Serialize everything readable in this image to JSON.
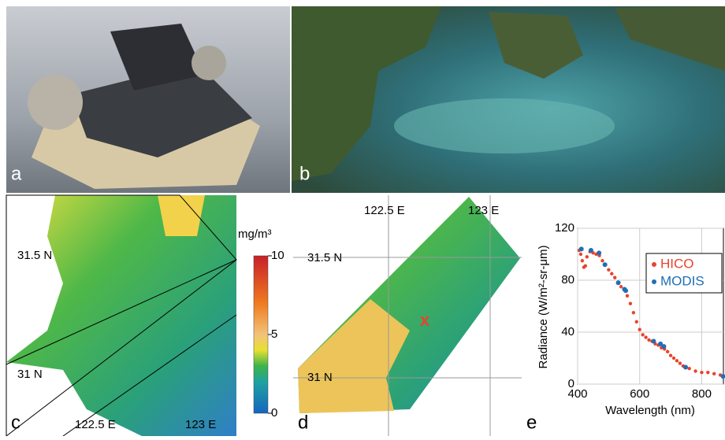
{
  "panel_labels": [
    "a",
    "b",
    "c",
    "d",
    "e"
  ],
  "map_c": {
    "lat_labels": [
      "31.5 N",
      "31 N"
    ],
    "lon_labels": [
      "122.5 E",
      "123 E"
    ]
  },
  "colorbar": {
    "unit": "mg/m³",
    "range": [
      0,
      10
    ],
    "ticks": [
      0,
      5,
      10
    ]
  },
  "map_d": {
    "lat_labels": [
      "31.5 N",
      "31 N"
    ],
    "lon_labels": [
      "122.5 E",
      "123 E"
    ],
    "marker": "x"
  },
  "chart_data": {
    "type": "scatter",
    "ylabel": "Radiance (W/m²-sr-μm)",
    "xlabel": "Wavelength (nm)",
    "xlim": [
      400,
      870
    ],
    "xticks": [
      400,
      600,
      800
    ],
    "ylim": [
      0,
      120
    ],
    "yticks": [
      0,
      40,
      80,
      120
    ],
    "grid": true,
    "legend": "upper right",
    "series": [
      {
        "name": "HICO",
        "color": "#e8432d",
        "x": [
          405,
          410,
          415,
          420,
          425,
          430,
          440,
          450,
          460,
          470,
          480,
          490,
          500,
          510,
          520,
          530,
          540,
          550,
          560,
          570,
          580,
          590,
          600,
          610,
          620,
          630,
          640,
          650,
          660,
          670,
          680,
          690,
          700,
          710,
          720,
          730,
          740,
          750,
          760,
          780,
          800,
          820,
          840,
          860
        ],
        "values": [
          103,
          100,
          95,
          90,
          91,
          98,
          102,
          101,
          100,
          99,
          95,
          92,
          88,
          85,
          82,
          78,
          75,
          73,
          68,
          62,
          55,
          48,
          42,
          38,
          36,
          34,
          33,
          31,
          30,
          28,
          27,
          25,
          22,
          20,
          18,
          16,
          14,
          13,
          12,
          10,
          9,
          9,
          8,
          7
        ]
      },
      {
        "name": "MODIS",
        "color": "#1f6fb5",
        "x": [
          412,
          443,
          469,
          488,
          531,
          551,
          555,
          645,
          667,
          678,
          748,
          869
        ],
        "values": [
          104,
          103,
          101,
          92,
          78,
          73,
          72,
          33,
          31,
          29,
          13,
          6
        ]
      }
    ]
  }
}
